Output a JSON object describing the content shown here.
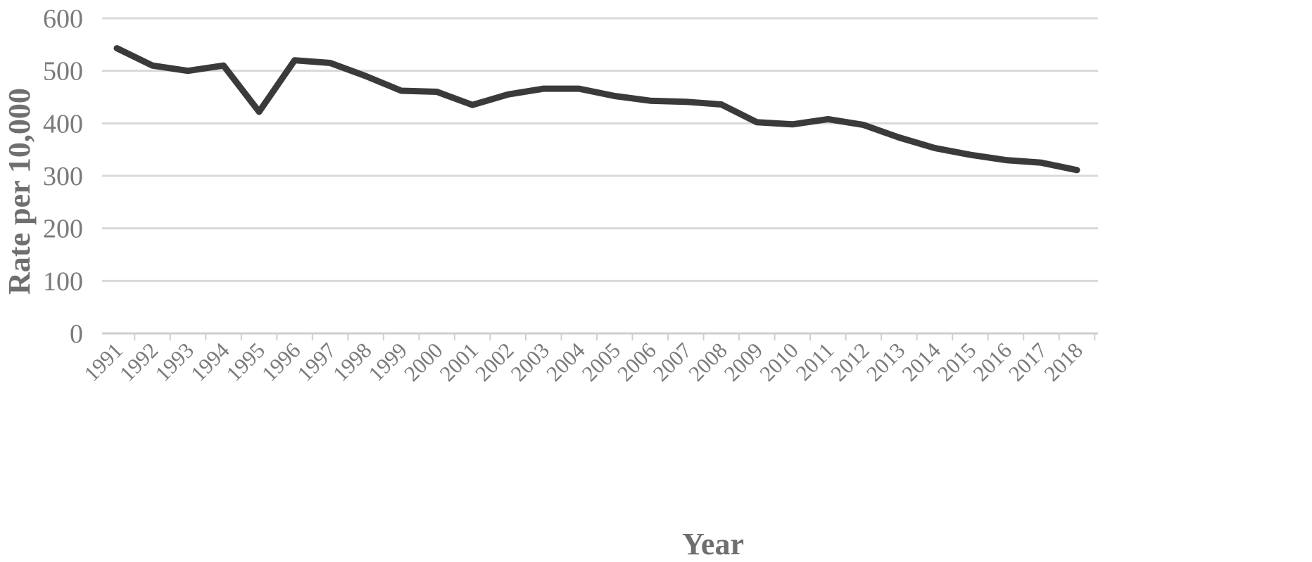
{
  "chart_data": {
    "type": "line",
    "title": "",
    "xlabel": "Year",
    "ylabel": "Rate per 10,000",
    "ylim": [
      0,
      600
    ],
    "yticks": [
      0,
      100,
      200,
      300,
      400,
      500,
      600
    ],
    "grid": true,
    "legend": "none",
    "categories": [
      "1991",
      "1992",
      "1993",
      "1994",
      "1995",
      "1996",
      "1997",
      "1998",
      "1999",
      "2000",
      "2001",
      "2002",
      "2003",
      "2004",
      "2005",
      "2006",
      "2007",
      "2008",
      "2009",
      "2010",
      "2011",
      "2012",
      "2013",
      "2014",
      "2015",
      "2016",
      "2017",
      "2018"
    ],
    "series": [
      {
        "color": "#3a3a3a",
        "values": [
          543,
          510,
          500,
          510,
          422,
          520,
          515,
          490,
          462,
          460,
          435,
          455,
          466,
          466,
          452,
          443,
          441,
          436,
          402,
          398,
          408,
          397,
          373,
          353,
          340,
          330,
          325,
          311
        ]
      }
    ]
  }
}
